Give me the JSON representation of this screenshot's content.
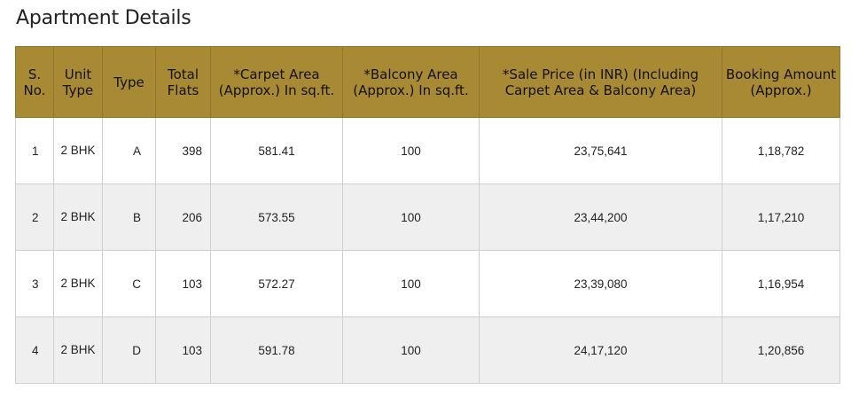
{
  "page_title": "Apartment Details",
  "table": {
    "headers": [
      "S. No.",
      "Unit Type",
      "Type",
      "Total Flats",
      "*Carpet Area (Approx.) In sq.ft.",
      "*Balcony Area (Approx.) In sq.ft.",
      "*Sale Price (in INR) (Including Carpet Area & Balcony Area)",
      "Booking Amount (Approx.)"
    ],
    "rows": [
      {
        "sno": "1",
        "unit_type": "2 BHK",
        "type": "A",
        "total_flats": "398",
        "carpet_area": "581.41",
        "balcony_area": "100",
        "sale_price": "23,75,641",
        "booking_amount": "1,18,782"
      },
      {
        "sno": "2",
        "unit_type": "2 BHK",
        "type": "B",
        "total_flats": "206",
        "carpet_area": "573.55",
        "balcony_area": "100",
        "sale_price": "23,44,200",
        "booking_amount": "1,17,210"
      },
      {
        "sno": "3",
        "unit_type": "2 BHK",
        "type": "C",
        "total_flats": "103",
        "carpet_area": "572.27",
        "balcony_area": "100",
        "sale_price": "23,39,080",
        "booking_amount": "1,16,954"
      },
      {
        "sno": "4",
        "unit_type": "2 BHK",
        "type": "D",
        "total_flats": "103",
        "carpet_area": "591.78",
        "balcony_area": "100",
        "sale_price": "24,17,120",
        "booking_amount": "1,20,856"
      }
    ]
  },
  "colors": {
    "header_bg": "#a88a35",
    "row_alt_bg": "#efefef",
    "border": "#cfcfcf"
  }
}
